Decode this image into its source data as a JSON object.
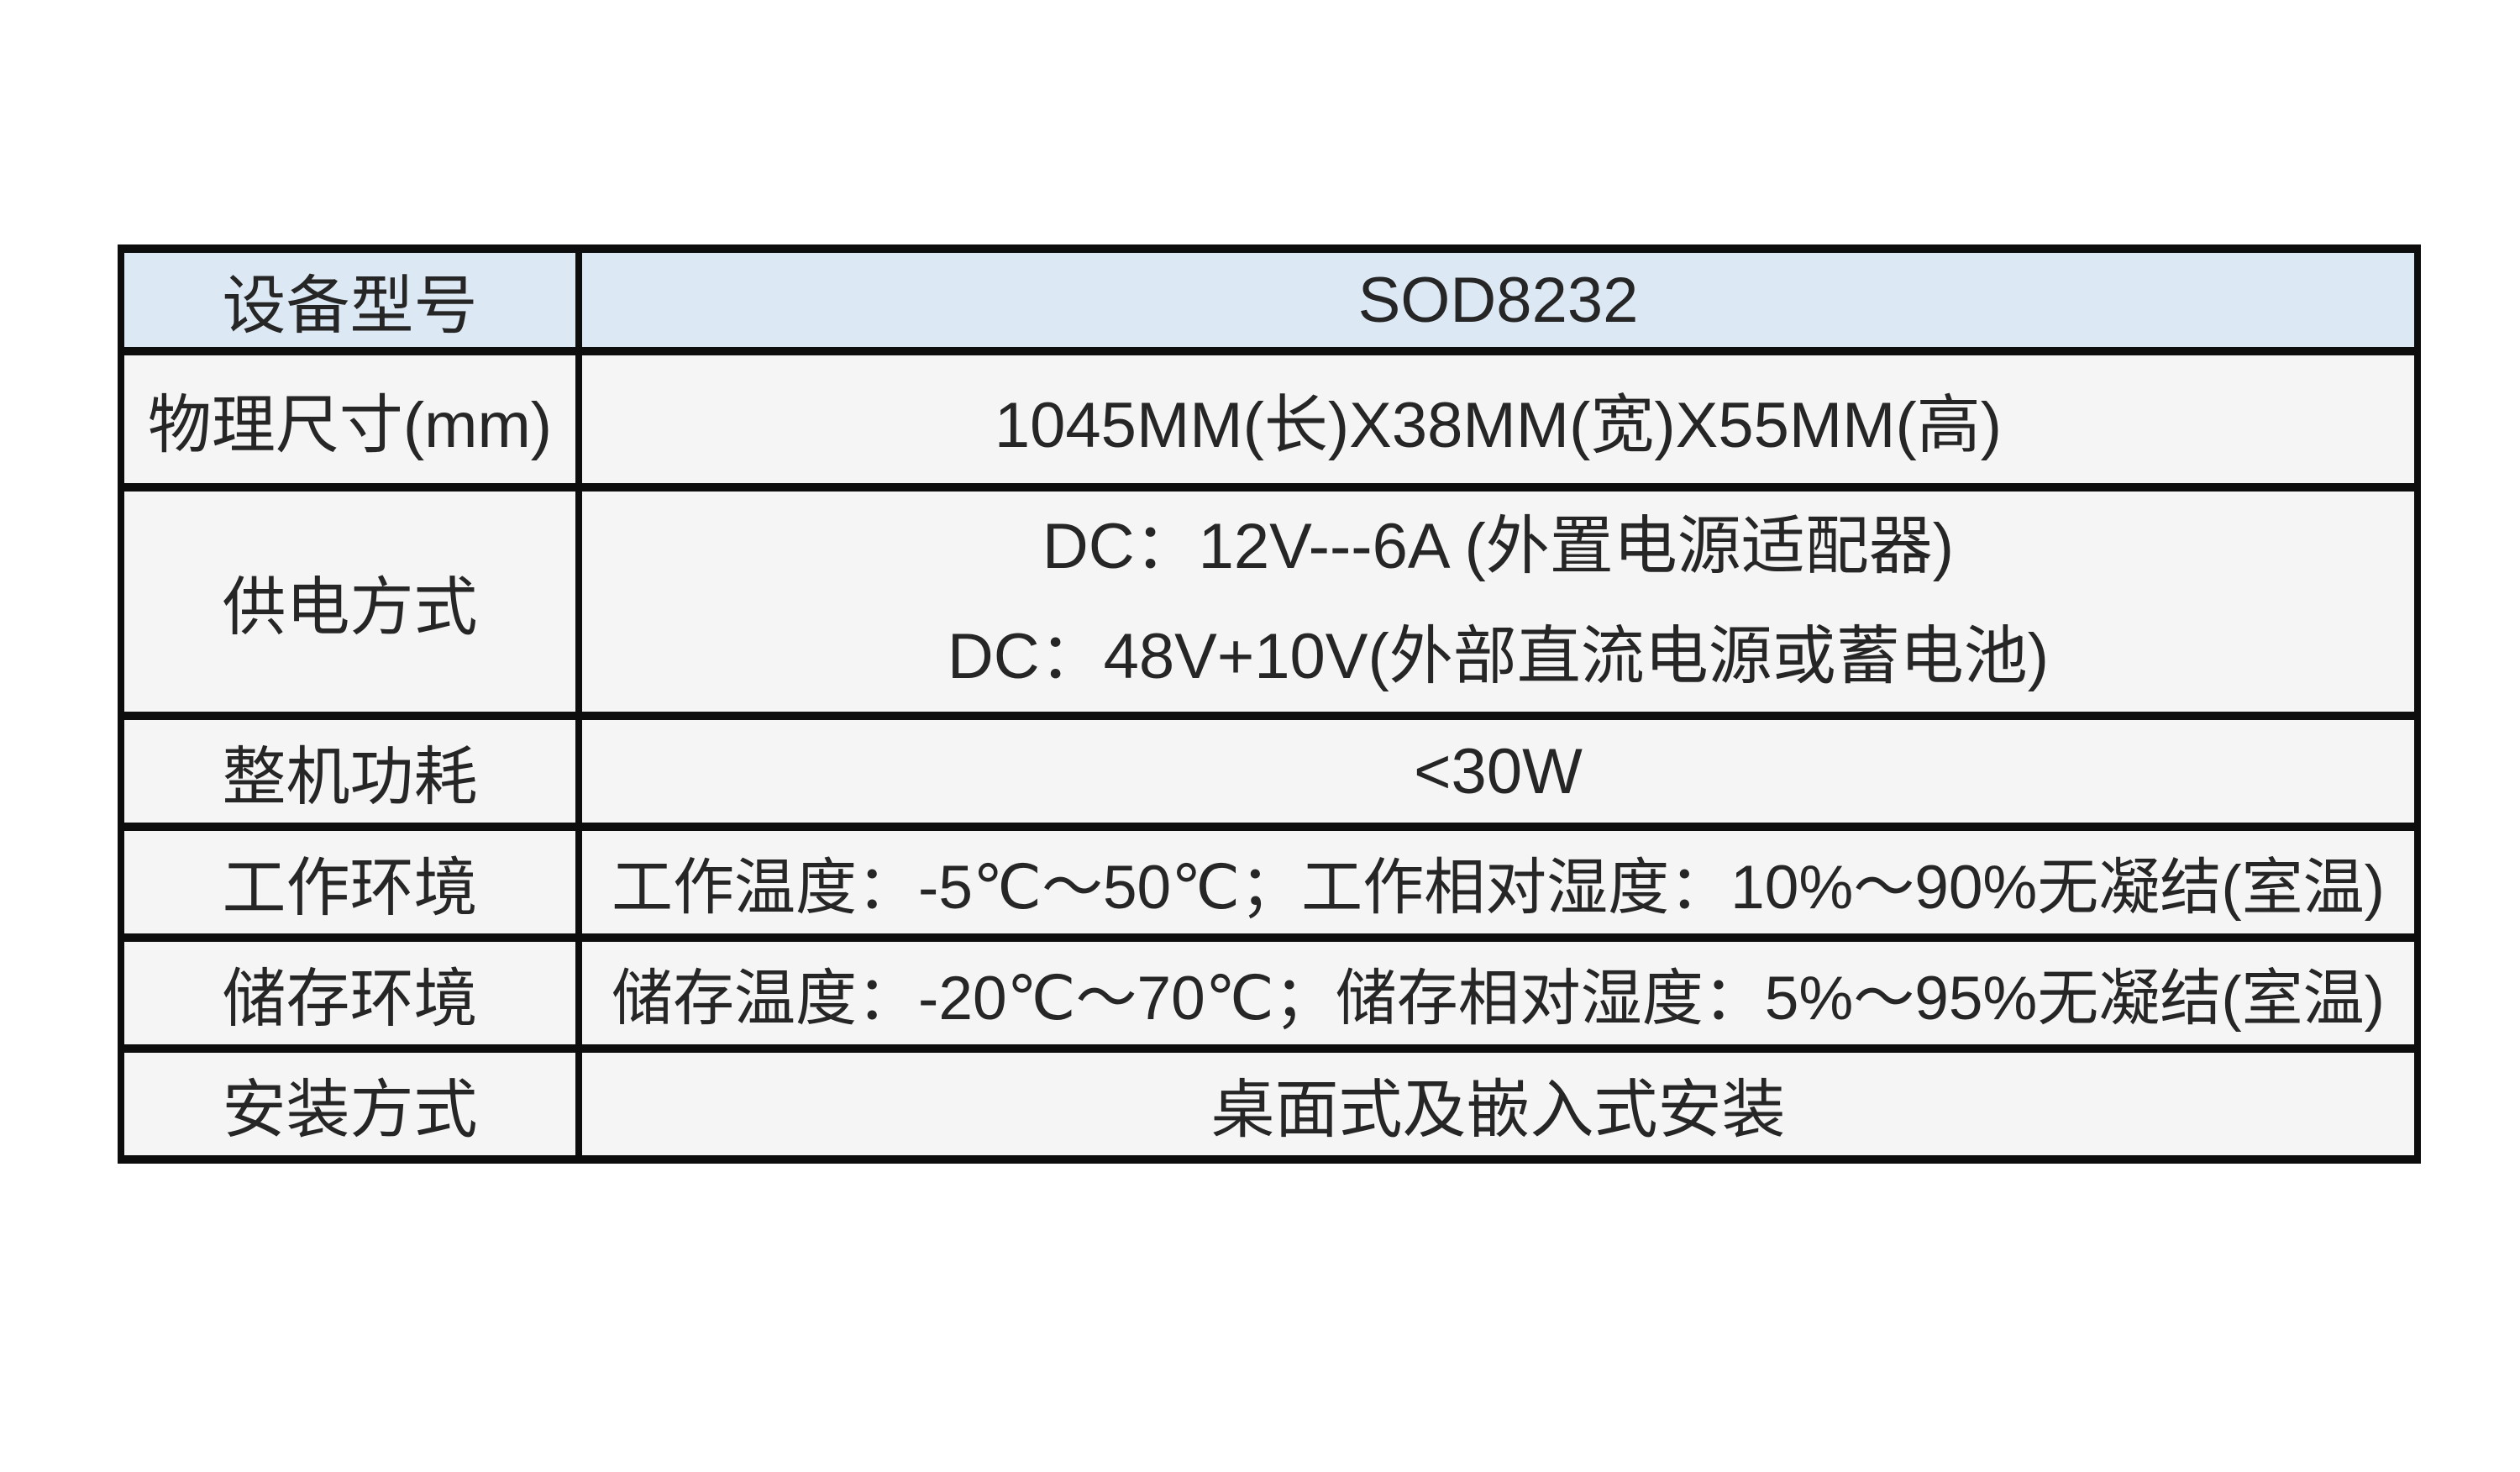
{
  "spec_table": {
    "colors": {
      "header_bg": "#dce8f4",
      "body_bg": "#f5f5f5",
      "border": "#0d0d0d",
      "text": "#262626",
      "page_bg": "#ffffff"
    },
    "rows": [
      {
        "label": "设备型号",
        "value": "SOD8232"
      },
      {
        "label": "物理尺寸(mm)",
        "value": "1045MM(长)X38MM(宽)X55MM(高)"
      },
      {
        "label": "供电方式",
        "value_line1": "DC：12V---6A (外置电源适配器)",
        "value_line2": "DC：48V+10V(外部直流电源或蓄电池)"
      },
      {
        "label": "整机功耗",
        "value": "<30W"
      },
      {
        "label": "工作环境",
        "value": "工作温度：-5℃～50℃；工作相对湿度：10%～90%无凝结(室温)"
      },
      {
        "label": "储存环境",
        "value": "储存温度：-20℃～70℃；储存相对湿度：5%～95%无凝结(室温)"
      },
      {
        "label": "安装方式",
        "value": "桌面式及嵌入式安装"
      }
    ]
  }
}
